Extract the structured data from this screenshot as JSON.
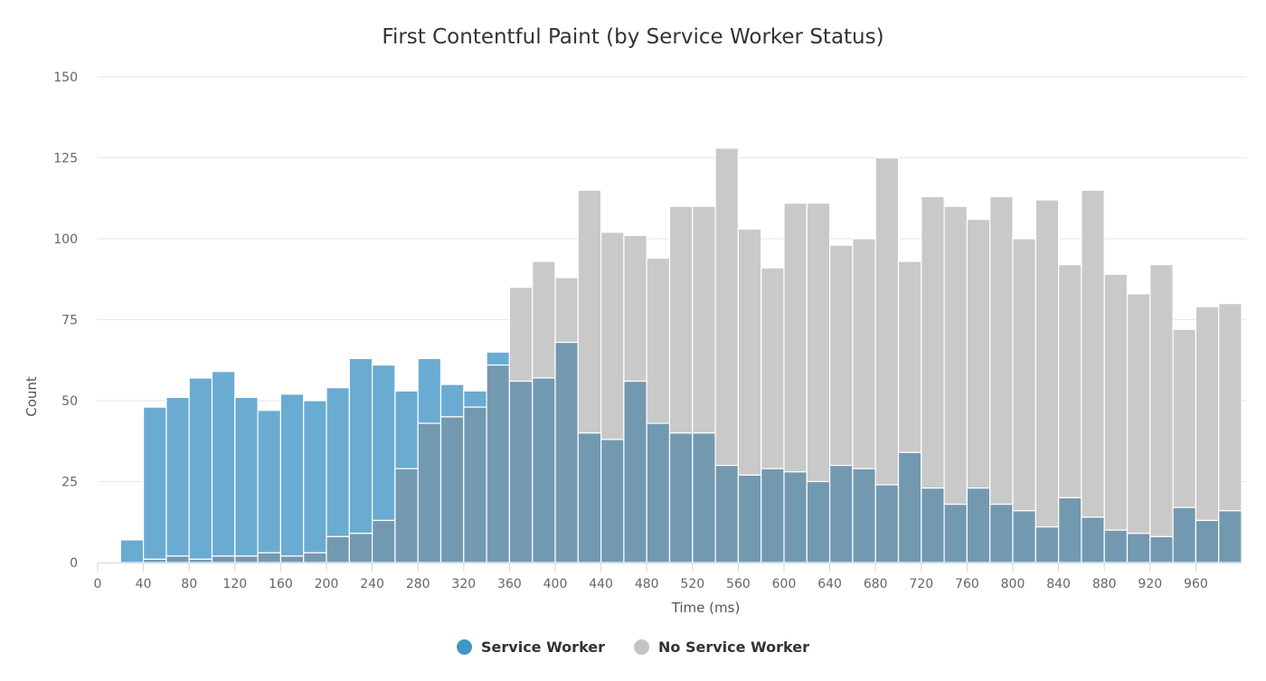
{
  "chart_data": {
    "type": "bar",
    "title": "First Contentful Paint (by Service Worker Status)",
    "xlabel": "Time (ms)",
    "ylabel": "Count",
    "bin_width": 20,
    "xlim": [
      0,
      1000
    ],
    "ylim": [
      0,
      150
    ],
    "x_ticks": [
      0,
      40,
      80,
      120,
      160,
      200,
      240,
      280,
      320,
      360,
      400,
      440,
      480,
      520,
      560,
      600,
      640,
      680,
      720,
      760,
      800,
      840,
      880,
      920,
      960
    ],
    "y_ticks": [
      0,
      25,
      50,
      75,
      100,
      125,
      150
    ],
    "grid": true,
    "legend_position": "bottom",
    "bin_starts": [
      0,
      20,
      40,
      60,
      80,
      100,
      120,
      140,
      160,
      180,
      200,
      220,
      240,
      260,
      280,
      300,
      320,
      340,
      360,
      380,
      400,
      420,
      440,
      460,
      480,
      500,
      520,
      540,
      560,
      580,
      600,
      620,
      640,
      660,
      680,
      700,
      720,
      740,
      760,
      780,
      800,
      820,
      840,
      860,
      880,
      900,
      920,
      940,
      960,
      980
    ],
    "series": [
      {
        "name": "Service Worker",
        "color": "#4396c3",
        "values": [
          0,
          7,
          48,
          51,
          57,
          59,
          51,
          47,
          52,
          50,
          54,
          63,
          61,
          53,
          63,
          55,
          53,
          65,
          56,
          57,
          68,
          40,
          38,
          56,
          43,
          40,
          40,
          30,
          27,
          29,
          28,
          25,
          30,
          29,
          24,
          34,
          23,
          18,
          23,
          18,
          16,
          11,
          20,
          14,
          10,
          9,
          8,
          17,
          13,
          16
        ]
      },
      {
        "name": "No Service Worker",
        "color": "#c4c4c4",
        "values": [
          0,
          0,
          1,
          2,
          1,
          2,
          2,
          3,
          2,
          3,
          8,
          9,
          13,
          29,
          43,
          45,
          48,
          61,
          85,
          93,
          88,
          115,
          102,
          101,
          94,
          110,
          110,
          128,
          103,
          91,
          111,
          111,
          98,
          100,
          125,
          93,
          113,
          110,
          106,
          113,
          100,
          112,
          92,
          115,
          89,
          83,
          92,
          72,
          79,
          80
        ]
      }
    ]
  }
}
